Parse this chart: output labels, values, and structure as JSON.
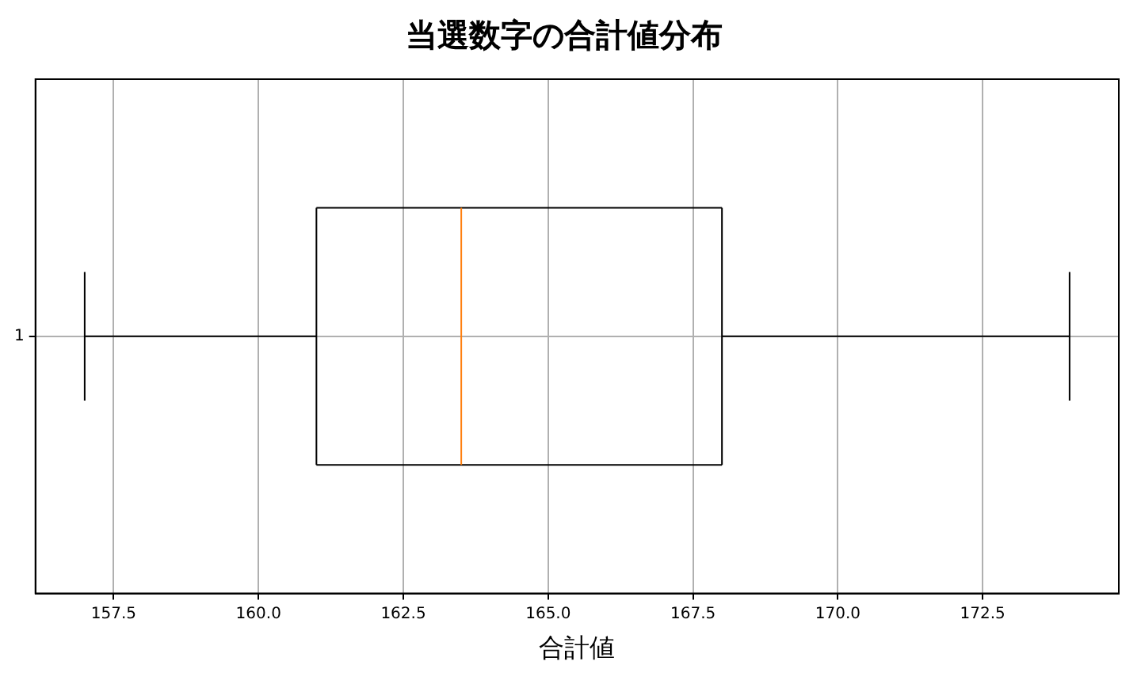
{
  "chart_data": {
    "type": "box",
    "title": "当選数字の合計値分布",
    "xlabel": "合計値",
    "orientation": "horizontal",
    "categories": [
      "1"
    ],
    "series": [
      {
        "color": "#000000",
        "boxes": [
          {
            "low": 157,
            "q1": 161,
            "median": 163.5,
            "q3": 168,
            "high": 174
          }
        ]
      }
    ],
    "xlim": [
      156.15,
      174.85
    ],
    "xticks": [
      {
        "value": 157.5,
        "label": "157.5"
      },
      {
        "value": 160,
        "label": "160.0"
      },
      {
        "value": 162.5,
        "label": "162.5"
      },
      {
        "value": 165,
        "label": "165.0"
      },
      {
        "value": 167.5,
        "label": "167.5"
      },
      {
        "value": 170,
        "label": "170.0"
      },
      {
        "value": 172.5,
        "label": "172.5"
      }
    ],
    "grid": true,
    "legend": false
  }
}
